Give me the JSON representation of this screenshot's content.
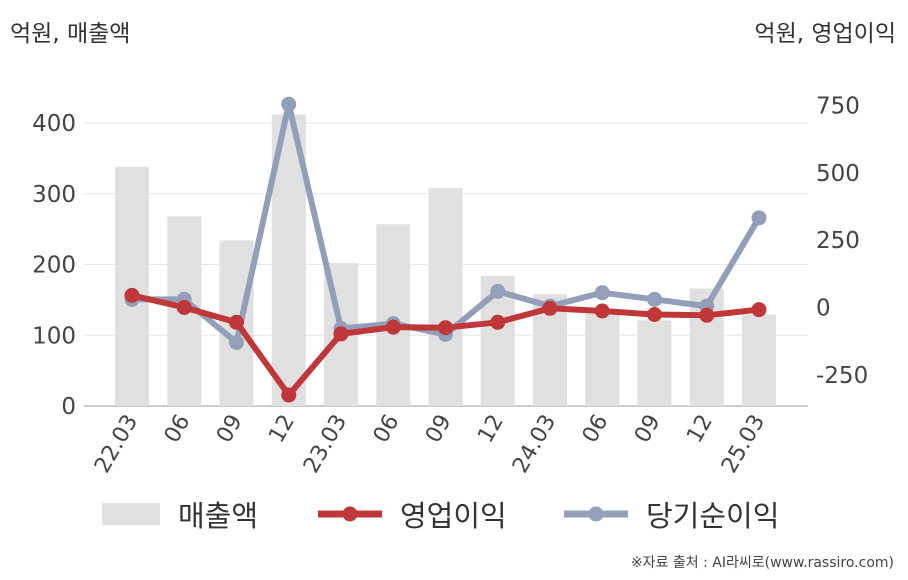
{
  "chart_data": {
    "type": "bar+line",
    "left_axis_unit": "억원, 매출액",
    "right_axis_unit": "억원, 영업이익",
    "categories": [
      "22.03",
      "06",
      "09",
      "12",
      "23.03",
      "06",
      "09",
      "12",
      "24.03",
      "06",
      "09",
      "12",
      "25.03"
    ],
    "left_axis": {
      "ylim": [
        0,
        450
      ],
      "ticks": [
        0,
        100,
        200,
        300,
        400
      ]
    },
    "right_axis": {
      "ylim": [
        -375,
        800
      ],
      "ticks": [
        -250,
        0,
        250,
        500,
        750
      ]
    },
    "series": [
      {
        "name": "매출액",
        "kind": "bar",
        "axis": "left",
        "color": "#e0e0e0",
        "values": [
          338,
          268,
          234,
          412,
          202,
          257,
          308,
          184,
          158,
          133,
          121,
          166,
          129
        ]
      },
      {
        "name": "영업이익",
        "kind": "line",
        "axis": "right",
        "color": "#c0373a",
        "values": [
          45,
          0,
          -55,
          -325,
          -98,
          -73,
          -75,
          -55,
          -3,
          -13,
          -26,
          -29,
          -8
        ]
      },
      {
        "name": "당기순이익",
        "kind": "line",
        "axis": "right",
        "color": "#939eb8",
        "values": [
          30,
          30,
          -130,
          755,
          -78,
          -60,
          -100,
          60,
          5,
          55,
          30,
          5,
          333
        ]
      }
    ],
    "grid": true,
    "legend_position": "bottom"
  },
  "source_text": "※자료 출처 : AI라씨로(www.rassiro.com)",
  "colors": {
    "bar": "#e0e0e0",
    "operating": "#c0373a",
    "net": "#939eb8",
    "grid": "#e6e6e6",
    "axis": "#bbbbbb"
  }
}
